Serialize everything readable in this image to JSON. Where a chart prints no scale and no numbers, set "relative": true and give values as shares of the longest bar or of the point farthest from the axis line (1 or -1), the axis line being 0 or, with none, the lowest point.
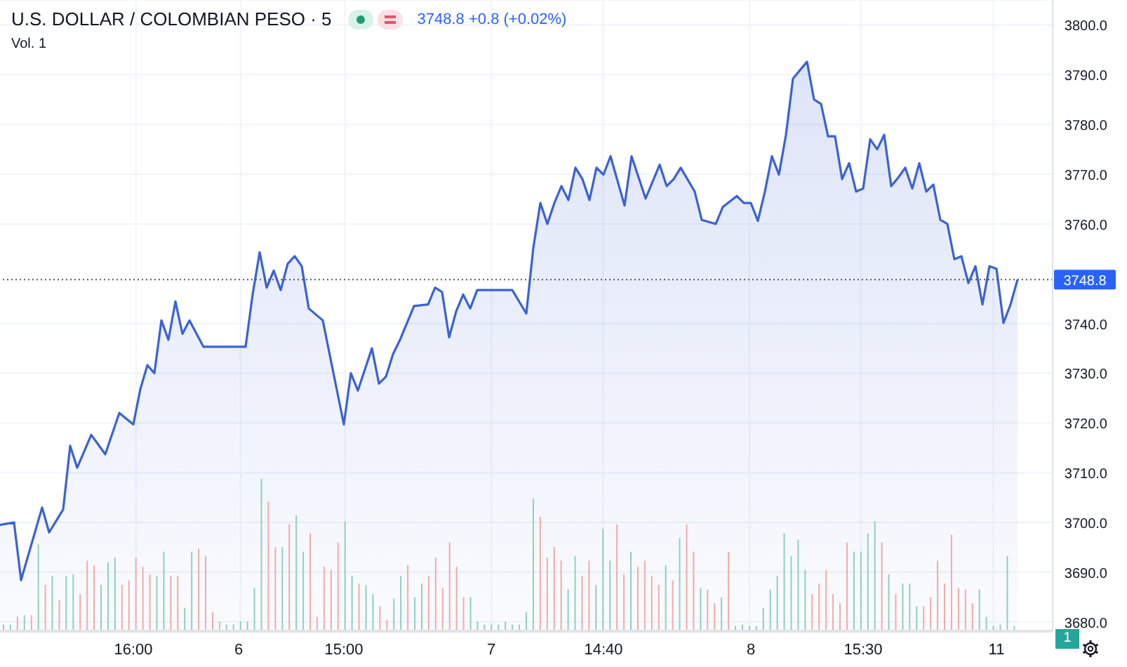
{
  "chart_data": [
    {
      "type": "area",
      "title": "U.S. DOLLAR / COLOMBIAN PESO · 5",
      "annotations": [
        "3748.8 +0.8 (+0.02%)",
        "Vol. 1",
        "1"
      ],
      "categories": [
        null,
        null,
        null,
        null,
        null,
        null,
        null,
        null,
        null,
        null,
        null,
        null,
        null,
        null,
        null,
        null,
        null,
        null,
        null,
        "16:00",
        null,
        null,
        null,
        null,
        null,
        null,
        null,
        null,
        null,
        null,
        null,
        null,
        null,
        null,
        "6",
        null,
        null,
        null,
        null,
        null,
        null,
        null,
        null,
        null,
        null,
        null,
        null,
        null,
        null,
        "15:00",
        null,
        null,
        null,
        null,
        null,
        null,
        null,
        null,
        null,
        null,
        null,
        null,
        null,
        null,
        null,
        null,
        null,
        null,
        null,
        null,
        "7",
        null,
        null,
        null,
        null,
        null,
        null,
        null,
        null,
        null,
        null,
        null,
        null,
        null,
        null,
        null,
        "14:40",
        null,
        null,
        null,
        null,
        null,
        null,
        null,
        null,
        null,
        null,
        null,
        null,
        null,
        null,
        null,
        null,
        null,
        null,
        null,
        null,
        "8",
        null,
        null,
        null,
        null,
        null,
        null,
        null,
        null,
        null,
        null,
        null,
        null,
        null,
        null,
        null,
        "15:30",
        null,
        null,
        null,
        null,
        null,
        null,
        null,
        null,
        null,
        null,
        null,
        null,
        null,
        null,
        null,
        null,
        null,
        null,
        "11",
        null,
        null,
        null,
        null,
        null,
        null,
        null,
        null
      ],
      "series": [
        {
          "color": "#3a62d4",
          "values": [
            3699.5,
            null,
            3700,
            3688.4,
            null,
            null,
            3703,
            3698,
            null,
            3702.6,
            3715.4,
            3711,
            null,
            3717.6,
            null,
            3713.7,
            null,
            3722,
            null,
            3719.7,
            3726.8,
            3731.6,
            3730,
            3740.6,
            3736.7,
            3744.4,
            3737.9,
            3740.6,
            null,
            3735.3,
            null,
            null,
            null,
            null,
            null,
            3735.3,
            3745.8,
            3754.3,
            3747.2,
            3750.6,
            3746.7,
            3752,
            3753.5,
            3751.5,
            3743,
            null,
            3740.6,
            3733.6,
            null,
            3719.7,
            3730,
            3726.5,
            null,
            3735,
            3727.9,
            3729.3,
            3733.8,
            3736.7,
            null,
            3743.5,
            null,
            3743.8,
            3747.2,
            3746.3,
            3737.2,
            3742.4,
            3745.8,
            3743,
            3746.7,
            null,
            null,
            null,
            null,
            3746.7,
            null,
            3742,
            3755.2,
            3764.2,
            3760,
            3764.2,
            3767.6,
            3764.8,
            3771.3,
            3769,
            3764.8,
            3771.3,
            3769.9,
            3773.6,
            null,
            3763.7,
            3773.6,
            null,
            3765.1,
            null,
            3771.9,
            3767.6,
            3769,
            3771.3,
            null,
            3766.5,
            3760.8,
            null,
            3760,
            3763.4,
            null,
            3765.6,
            3764.2,
            3764.2,
            3760.6,
            3766.5,
            3773.6,
            3769.9,
            3777.9,
            3789.2,
            null,
            3792.6,
            3785,
            3784.1,
            3777.6,
            3777.6,
            3769,
            3772.2,
            3766.5,
            3767.1,
            3777,
            3775,
            3777.9,
            3767.6,
            3769.3,
            3771.3,
            3767.1,
            3772.2,
            3766.5,
            3767.9,
            3760.8,
            3760,
            3752.9,
            3753.5,
            3748.1,
            3751.5,
            3743.8,
            3751.5,
            3751,
            3740.1,
            3743.8,
            3748.8,
            null,
            null,
            null,
            null,
            null
          ]
        }
      ],
      "ylim": [
        3678,
        3805
      ],
      "yticks": [
        {
          "value": 3680,
          "label": "3680.0"
        },
        {
          "value": 3690,
          "label": "3690.0"
        },
        {
          "value": 3700,
          "label": "3700.0"
        },
        {
          "value": 3710,
          "label": "3710.0"
        },
        {
          "value": 3720,
          "label": "3720.0"
        },
        {
          "value": 3730,
          "label": "3730.0"
        },
        {
          "value": 3740,
          "label": "3740.0"
        },
        {
          "value": 3760,
          "label": "3760.0"
        },
        {
          "value": 3770,
          "label": "3770.0"
        },
        {
          "value": 3780,
          "label": "3780.0"
        },
        {
          "value": 3790,
          "label": "3790.0"
        },
        {
          "value": 3800,
          "label": "3800.0"
        }
      ],
      "grid": true,
      "ref_lines": [
        {
          "axis": "y",
          "value": 3748.8,
          "label": "3748.8",
          "color": "#555555",
          "line_style": "dotted"
        }
      ]
    },
    {
      "type": "bar",
      "relative": true,
      "stacked": true,
      "categories": [
        null,
        null,
        null,
        null,
        null,
        null,
        null,
        null,
        null,
        null,
        null,
        null,
        null,
        null,
        null,
        null,
        null,
        null,
        null,
        null,
        null,
        null,
        null,
        null,
        null,
        null,
        null,
        null,
        null,
        null,
        null,
        null,
        null,
        null,
        null,
        null,
        null,
        null,
        null,
        null,
        null,
        null,
        null,
        null,
        null,
        null,
        null,
        null,
        null,
        null,
        null,
        null,
        null,
        null,
        null,
        null,
        null,
        null,
        null,
        null,
        null,
        null,
        null,
        null,
        null,
        null,
        null,
        null,
        null,
        null,
        null,
        null,
        null,
        null,
        null,
        null,
        null,
        null,
        null,
        null,
        null,
        null,
        null,
        null,
        null,
        null,
        null,
        null,
        null,
        null,
        null,
        null,
        null,
        null,
        null,
        null,
        null,
        null,
        null,
        null,
        null,
        null,
        null,
        null,
        null,
        null,
        null,
        null,
        null,
        null,
        null,
        null,
        null,
        null,
        null,
        null,
        null,
        null,
        null,
        null,
        null,
        null,
        null,
        null,
        null,
        null,
        null,
        null,
        null,
        null,
        null,
        null,
        null,
        null,
        null,
        null,
        null,
        null,
        null,
        null,
        null,
        null,
        null,
        null,
        null,
        null,
        null,
        null,
        null,
        null,
        null
      ],
      "series": [
        {
          "color": "#8fd0bd",
          "values": [
            0.04,
            0.04,
            null,
            0.1,
            null,
            0.57,
            null,
            0.36,
            null,
            0.36,
            0.37,
            null,
            null,
            null,
            0.3,
            0.45,
            0.48,
            null,
            null,
            null,
            null,
            null,
            0.36,
            0.52,
            null,
            null,
            0.15,
            0.52,
            null,
            null,
            null,
            null,
            0.04,
            0.04,
            0.06,
            0.06,
            0.28,
            1,
            null,
            null,
            0.55,
            null,
            0.76,
            0.52,
            null,
            null,
            null,
            null,
            null,
            0.72,
            0.36,
            null,
            0.3,
            0.24,
            null,
            null,
            0.21,
            0.36,
            null,
            0.22,
            0.31,
            null,
            null,
            null,
            null,
            null,
            null,
            0.22,
            0.06,
            0.04,
            0.04,
            0.04,
            0.06,
            0.04,
            0.04,
            0.12,
            0.87,
            null,
            null,
            null,
            null,
            0.27,
            0.49,
            null,
            null,
            0.3,
            0.67,
            0.46,
            null,
            null,
            0.52,
            null,
            null,
            null,
            null,
            0.43,
            null,
            0.61,
            null,
            null,
            0.28,
            null,
            null,
            0.22,
            null,
            0.03,
            0.04,
            0.03,
            0.03,
            0.15,
            0.27,
            0.36,
            0.64,
            0.49,
            0.6,
            0.4,
            null,
            null,
            null,
            null,
            null,
            null,
            0.52,
            0.52,
            0.64,
            0.72,
            null,
            0.37,
            null,
            0.31,
            0.31,
            0.16,
            null,
            null,
            null,
            null,
            null,
            null,
            null,
            null,
            0.27,
            0.09,
            0.03,
            0.04,
            0.49,
            0.03,
            null,
            null,
            null,
            null,
            null
          ]
        },
        {
          "color": "#f2aaa6",
          "values": [
            null,
            null,
            0.09,
            null,
            0.1,
            null,
            0.3,
            null,
            0.2,
            null,
            null,
            0.24,
            0.46,
            0.43,
            null,
            null,
            null,
            0.3,
            0.33,
            0.48,
            0.42,
            0.37,
            null,
            null,
            0.36,
            0.36,
            null,
            null,
            0.54,
            0.49,
            0.12,
            0.06,
            null,
            null,
            null,
            null,
            null,
            null,
            0.85,
            0.55,
            null,
            0.7,
            null,
            null,
            0.64,
            0.09,
            0.42,
            0.4,
            0.58,
            null,
            null,
            0.31,
            null,
            null,
            0.16,
            0.07,
            null,
            null,
            0.43,
            null,
            null,
            0.36,
            0.48,
            0.28,
            0.58,
            0.42,
            0.22,
            null,
            null,
            null,
            null,
            null,
            null,
            null,
            null,
            null,
            null,
            0.75,
            0.48,
            0.55,
            0.46,
            null,
            null,
            0.36,
            0.46,
            null,
            null,
            null,
            0.7,
            0.37,
            null,
            0.42,
            0.46,
            0.36,
            0.3,
            null,
            0.33,
            null,
            0.7,
            0.52,
            null,
            0.27,
            0.18,
            null,
            0.52,
            null,
            null,
            null,
            null,
            null,
            null,
            null,
            null,
            null,
            null,
            null,
            0.24,
            0.31,
            0.4,
            0.24,
            0.18,
            0.58,
            null,
            null,
            null,
            null,
            0.58,
            null,
            0.24,
            null,
            null,
            null,
            0.16,
            0.22,
            0.46,
            0.31,
            0.63,
            0.28,
            0.27,
            0.18,
            null,
            null,
            null,
            null,
            null,
            null,
            null,
            null,
            null,
            null,
            null
          ]
        }
      ]
    }
  ]
}
